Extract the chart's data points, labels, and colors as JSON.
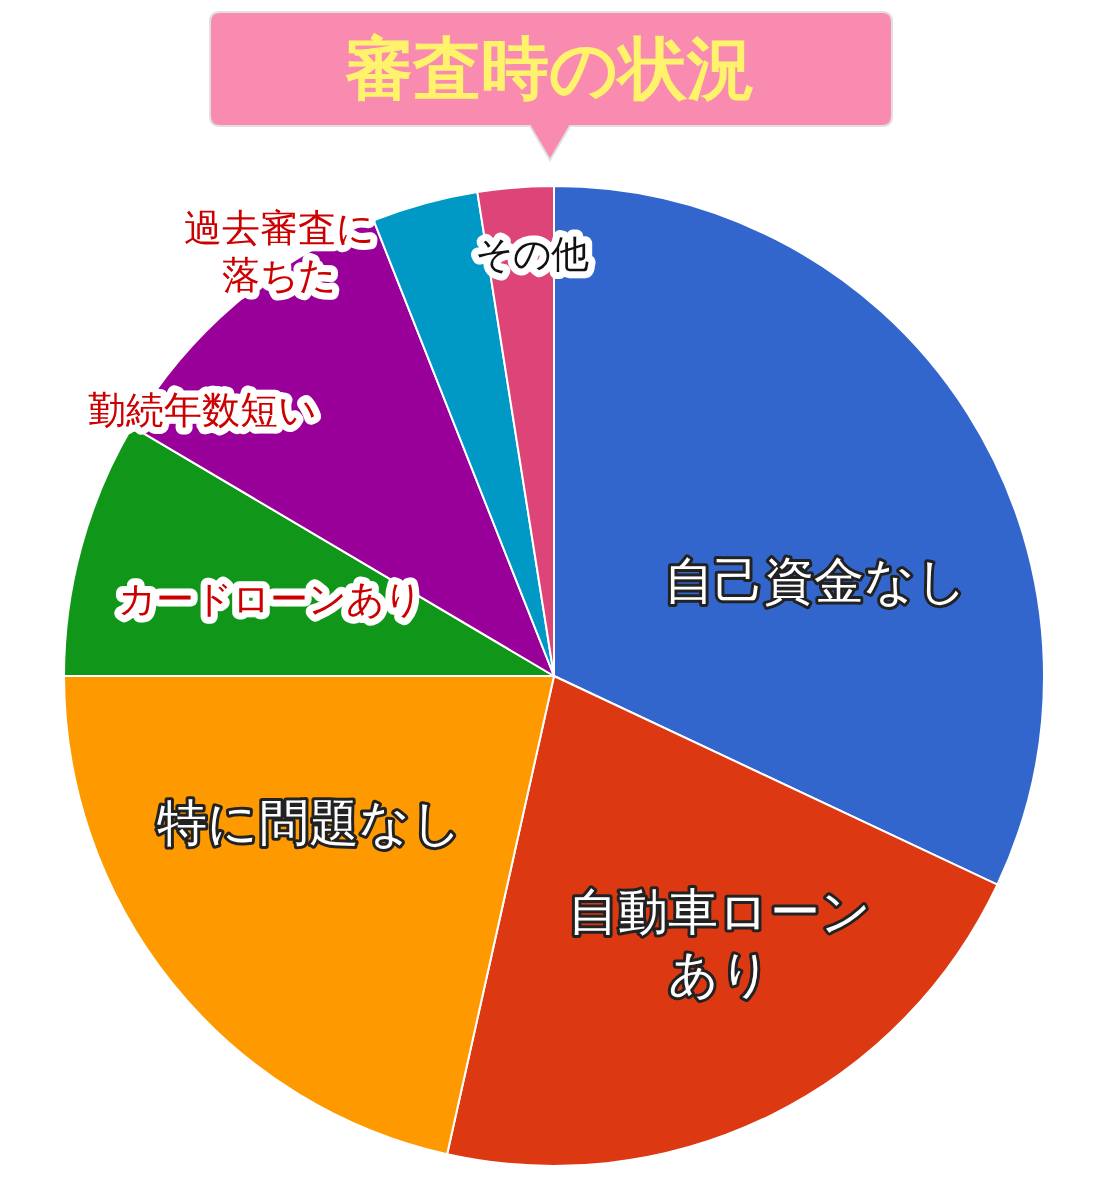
{
  "chart_data": {
    "type": "pie",
    "title": "審査時の状況",
    "categories": [
      "自己資金なし",
      "自動車ローンあり",
      "特に問題なし",
      "カードローンあり",
      "勤続年数短い",
      "過去審査に落ちた",
      "その他"
    ],
    "values": [
      32,
      21.5,
      21.5,
      8.5,
      10.5,
      3.5,
      2.5
    ],
    "colors": [
      "#3366cc",
      "#dc3912",
      "#ff9900",
      "#109618",
      "#990099",
      "#0099c6",
      "#dd4477"
    ]
  }
}
